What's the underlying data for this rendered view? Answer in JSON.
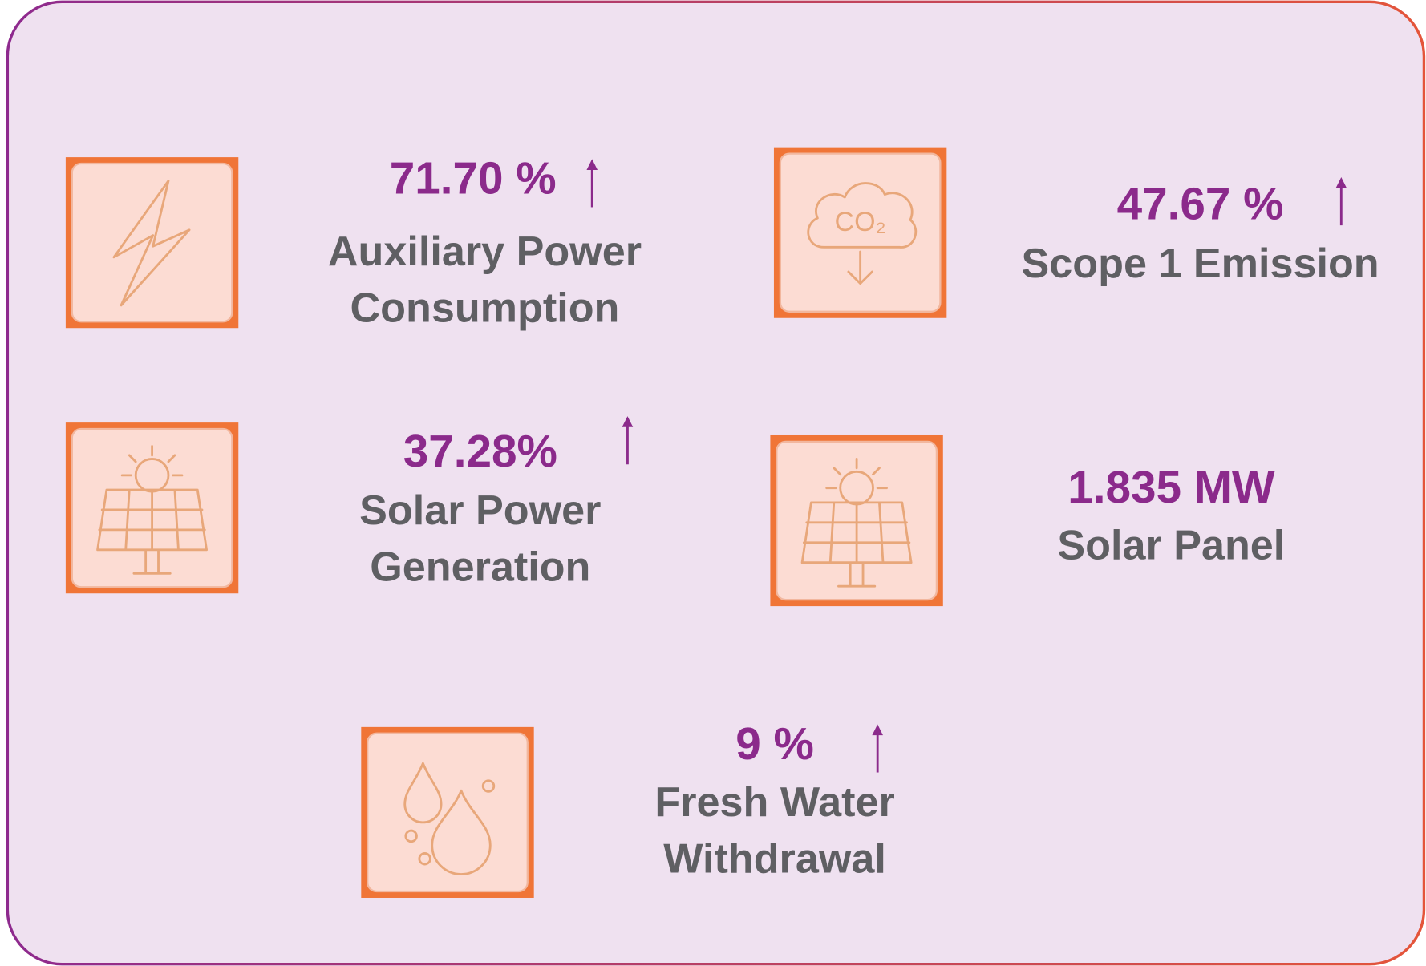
{
  "items": [
    {
      "value": "71.70 %",
      "label_lines": [
        "Auxiliary Power",
        "Consumption"
      ],
      "trend": "up"
    },
    {
      "value": "47.67 %",
      "label_lines": [
        "Scope 1 Emission"
      ],
      "trend": "up",
      "icon_text": "CO₂"
    },
    {
      "value": "37.28%",
      "label_lines": [
        "Solar Power",
        "Generation"
      ],
      "trend": "up"
    },
    {
      "value": "1.835 MW",
      "label_lines": [
        "Solar Panel"
      ]
    },
    {
      "value": "9 %",
      "label_lines": [
        "Fresh Water",
        "Withdrawal"
      ],
      "trend": "up"
    }
  ]
}
